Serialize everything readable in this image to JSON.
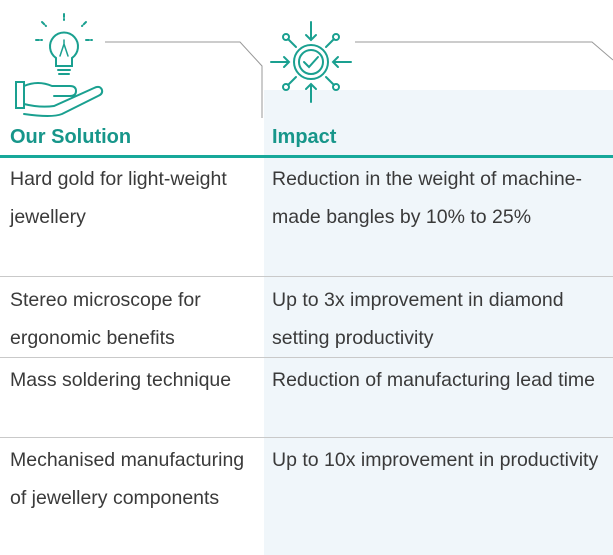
{
  "table": {
    "columns": [
      "Our Solution",
      "Impact"
    ],
    "rows": [
      [
        "Hard gold for light-weight jewellery",
        "Reduction in the weight of machine-made bangles by 10% to 25%"
      ],
      [
        "Stereo microscope for ergonomic benefits",
        "Up to 3x improvement in diamond setting productivity"
      ],
      [
        "Mass soldering technique",
        "Reduction of manufacturing lead time"
      ],
      [
        "Mechanised manufacturing of jewellery components",
        "Up to 10x improvement in productivity"
      ]
    ]
  }
}
